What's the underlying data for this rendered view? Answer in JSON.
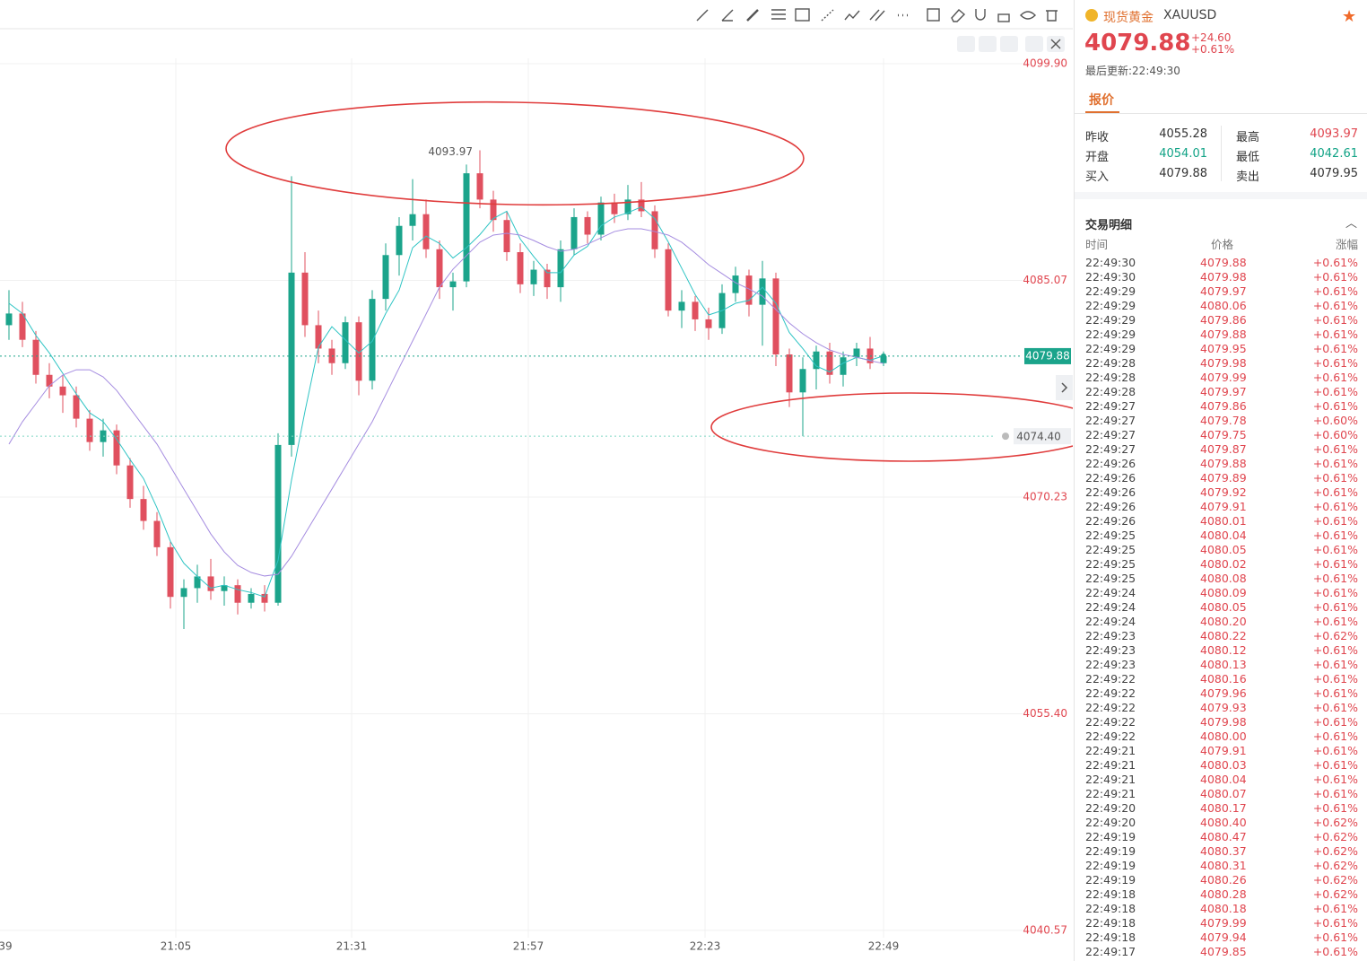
{
  "chart_data": {
    "type": "candlestick",
    "open": [
      4082.0,
      4082.8,
      4081.0,
      4078.6,
      4077.8,
      4077.2,
      4075.6,
      4074.0,
      4074.8,
      4072.4,
      4070.1,
      4068.6,
      4066.8,
      4063.4,
      4064.0,
      4064.8,
      4063.8,
      4064.2,
      4063.0,
      4063.6,
      4063.0,
      4073.8,
      4085.6,
      4082.0,
      4080.4,
      4079.4,
      4082.2,
      4078.2,
      4083.8,
      4086.8,
      4088.8,
      4089.6,
      4087.2,
      4084.6,
      4085.0,
      4092.4,
      4090.6,
      4089.2,
      4087.0,
      4084.8,
      4085.8,
      4084.6,
      4087.2,
      4089.4,
      4088.2,
      4090.4,
      4089.6,
      4090.6,
      4089.8,
      4087.2,
      4083.0,
      4083.6,
      4082.4,
      4081.8,
      4084.2,
      4085.4,
      4083.4,
      4085.2,
      4080.0,
      4077.4,
      4079.0,
      4080.2,
      4078.6,
      4079.8,
      4080.4,
      4079.4
    ],
    "high": [
      4084.4,
      4083.6,
      4081.6,
      4079.4,
      4078.6,
      4077.8,
      4076.2,
      4075.6,
      4075.2,
      4072.9,
      4071.0,
      4069.2,
      4067.2,
      4064.6,
      4065.6,
      4066.0,
      4064.8,
      4064.6,
      4064.0,
      4064.2,
      4074.6,
      4092.2,
      4087.0,
      4083.0,
      4081.0,
      4082.6,
      4082.6,
      4084.4,
      4087.6,
      4089.4,
      4092.0,
      4090.6,
      4087.8,
      4085.6,
      4093.0,
      4093.97,
      4091.2,
      4089.8,
      4087.6,
      4086.4,
      4086.2,
      4087.8,
      4090.0,
      4089.8,
      4090.8,
      4091.0,
      4091.6,
      4091.8,
      4090.2,
      4087.6,
      4084.4,
      4084.0,
      4083.2,
      4084.8,
      4086.0,
      4085.8,
      4086.4,
      4085.6,
      4080.4,
      4079.8,
      4080.6,
      4080.8,
      4080.2,
      4080.8,
      4081.2,
      4080.2
    ],
    "low": [
      4081.0,
      4080.5,
      4078.0,
      4077.0,
      4076.0,
      4075.0,
      4073.4,
      4073.0,
      4071.8,
      4069.5,
      4068.0,
      4066.2,
      4062.6,
      4061.2,
      4063.0,
      4063.2,
      4062.8,
      4062.2,
      4062.6,
      4062.4,
      4062.8,
      4073.0,
      4081.2,
      4079.4,
      4078.6,
      4079.0,
      4077.2,
      4077.6,
      4083.0,
      4085.4,
      4087.8,
      4086.6,
      4083.8,
      4083.0,
      4084.6,
      4090.0,
      4088.4,
      4086.4,
      4084.2,
      4084.0,
      4083.8,
      4083.6,
      4086.8,
      4087.6,
      4087.8,
      4089.0,
      4089.2,
      4089.4,
      4086.6,
      4082.6,
      4081.8,
      4081.6,
      4081.0,
      4081.4,
      4083.6,
      4082.6,
      4080.6,
      4079.2,
      4076.4,
      4074.4,
      4077.6,
      4078.0,
      4077.8,
      4079.2,
      4079.0,
      4079.2
    ],
    "close": [
      4082.8,
      4081.0,
      4078.6,
      4077.8,
      4077.2,
      4075.6,
      4074.0,
      4074.8,
      4072.4,
      4070.1,
      4068.6,
      4066.8,
      4063.4,
      4064.0,
      4064.8,
      4063.8,
      4064.2,
      4063.0,
      4063.6,
      4063.0,
      4073.8,
      4085.6,
      4082.0,
      4080.4,
      4079.4,
      4082.2,
      4078.2,
      4083.8,
      4086.8,
      4088.8,
      4089.6,
      4087.2,
      4084.6,
      4085.0,
      4092.4,
      4090.6,
      4089.2,
      4087.0,
      4084.8,
      4085.8,
      4084.6,
      4087.2,
      4089.4,
      4088.2,
      4090.4,
      4089.6,
      4090.6,
      4089.8,
      4087.2,
      4083.0,
      4083.6,
      4082.4,
      4081.8,
      4084.2,
      4085.4,
      4083.4,
      4085.2,
      4080.0,
      4077.4,
      4079.0,
      4080.2,
      4078.6,
      4079.8,
      4080.4,
      4079.4,
      4079.88
    ],
    "up_color": "#1ba48b",
    "down_color": "#e0505f",
    "moving_averages": [
      {
        "color": "#2ec4c4",
        "values": [
          4083.5,
          4082.8,
          4081.3,
          4080.1,
          4078.7,
          4077.3,
          4076.0,
          4075.4,
          4074.2,
          4072.8,
          4071.5,
          4069.5,
          4067.2,
          4065.7,
          4064.8,
          4064.0,
          4064.2,
          4063.9,
          4063.7,
          4063.4,
          4065.9,
          4071.4,
          4076.1,
          4080.5,
          4081.9,
          4081.0,
          4080.1,
          4080.9,
          4082.8,
          4084.4,
          4087.3,
          4088.1,
          4087.6,
          4086.6,
          4087.3,
          4088.2,
          4089.3,
          4089.8,
          4087.9,
          4086.7,
          4085.6,
          4085.6,
          4086.8,
          4087.4,
          4088.8,
          4089.4,
          4089.7,
          4090.1,
          4089.3,
          4087.7,
          4085.9,
          4084.1,
          4082.7,
          4083.0,
          4083.5,
          4083.7,
          4084.6,
          4083.5,
          4081.5,
          4080.4,
          4079.2,
          4078.8,
          4079.4,
          4079.8,
          4079.6,
          4079.9
        ]
      },
      {
        "color": "#a58ce0",
        "values": [
          4073.86,
          4075.39,
          4076.62,
          4077.85,
          4078.59,
          4078.95,
          4078.95,
          4078.46,
          4077.54,
          4076.31,
          4075.08,
          4073.86,
          4072.32,
          4070.78,
          4069.25,
          4067.71,
          4066.48,
          4065.56,
          4065.07,
          4064.83,
          4064.95,
          4066.18,
          4067.71,
          4069.25,
          4070.78,
          4072.32,
          4073.86,
          4075.39,
          4077.23,
          4079.08,
          4080.92,
          4082.76,
          4084.61,
          4085.83,
          4086.76,
          4087.68,
          4088.17,
          4088.29,
          4088.17,
          4087.8,
          4087.37,
          4087.06,
          4087.19,
          4087.55,
          4087.98,
          4088.41,
          4088.6,
          4088.6,
          4088.41,
          4088.17,
          4087.68,
          4086.94,
          4086.14,
          4085.53,
          4084.91,
          4084.48,
          4083.99,
          4083.07,
          4082.15,
          4081.41,
          4080.8,
          4080.31,
          4080.0,
          4079.81,
          4079.57,
          4079.38
        ]
      }
    ],
    "ylim": [
      4040.07,
      4100.27
    ],
    "yticks": [
      {
        "value": 4099.9,
        "label": "4099.90"
      },
      4085.07,
      4070.23,
      {
        "value": 4055.4,
        "label": "4055.40"
      },
      4040.57
    ],
    "grid": true,
    "xlabels": [
      "39",
      "21:05",
      "21:31",
      "21:57",
      "22:23",
      "22:49"
    ],
    "alert": {
      "value": 4074.4,
      "label": "4074.40"
    }
  },
  "quote": {
    "name": "现货黄金",
    "symbol": "XAUUSD",
    "price": "4079.88",
    "change": "+24.60",
    "change_pct": "+0.61%",
    "updated": "最后更新:22:49:30",
    "tab": "报价",
    "fields": [
      [
        "昨收",
        "4055.28",
        "最高",
        "4093.97"
      ],
      [
        "开盘",
        "4054.01",
        "最低",
        "4042.61"
      ],
      [
        "买入",
        "4079.88",
        "卖出",
        "4079.95"
      ]
    ],
    "trades_title": "交易明细",
    "trade_headers": [
      "时间",
      "价格",
      "涨幅"
    ],
    "trades": [
      [
        "22:49:30",
        "4079.88",
        "+0.61%"
      ],
      [
        "22:49:30",
        "4079.98",
        "+0.61%"
      ],
      [
        "22:49:29",
        "4079.97",
        "+0.61%"
      ],
      [
        "22:49:29",
        "4080.06",
        "+0.61%"
      ],
      [
        "22:49:29",
        "4079.86",
        "+0.61%"
      ],
      [
        "22:49:29",
        "4079.88",
        "+0.61%"
      ],
      [
        "22:49:29",
        "4079.95",
        "+0.61%"
      ],
      [
        "22:49:28",
        "4079.98",
        "+0.61%"
      ],
      [
        "22:49:28",
        "4079.99",
        "+0.61%"
      ],
      [
        "22:49:28",
        "4079.97",
        "+0.61%"
      ],
      [
        "22:49:27",
        "4079.86",
        "+0.61%"
      ],
      [
        "22:49:27",
        "4079.78",
        "+0.60%"
      ],
      [
        "22:49:27",
        "4079.75",
        "+0.60%"
      ],
      [
        "22:49:27",
        "4079.87",
        "+0.61%"
      ],
      [
        "22:49:26",
        "4079.88",
        "+0.61%"
      ],
      [
        "22:49:26",
        "4079.89",
        "+0.61%"
      ],
      [
        "22:49:26",
        "4079.92",
        "+0.61%"
      ],
      [
        "22:49:26",
        "4079.91",
        "+0.61%"
      ],
      [
        "22:49:26",
        "4080.01",
        "+0.61%"
      ],
      [
        "22:49:25",
        "4080.04",
        "+0.61%"
      ],
      [
        "22:49:25",
        "4080.05",
        "+0.61%"
      ],
      [
        "22:49:25",
        "4080.02",
        "+0.61%"
      ],
      [
        "22:49:25",
        "4080.08",
        "+0.61%"
      ],
      [
        "22:49:24",
        "4080.09",
        "+0.61%"
      ],
      [
        "22:49:24",
        "4080.05",
        "+0.61%"
      ],
      [
        "22:49:24",
        "4080.20",
        "+0.61%"
      ],
      [
        "22:49:23",
        "4080.22",
        "+0.62%"
      ],
      [
        "22:49:23",
        "4080.12",
        "+0.61%"
      ],
      [
        "22:49:23",
        "4080.13",
        "+0.61%"
      ],
      [
        "22:49:22",
        "4080.16",
        "+0.61%"
      ],
      [
        "22:49:22",
        "4079.96",
        "+0.61%"
      ],
      [
        "22:49:22",
        "4079.93",
        "+0.61%"
      ],
      [
        "22:49:22",
        "4079.98",
        "+0.61%"
      ],
      [
        "22:49:22",
        "4080.00",
        "+0.61%"
      ],
      [
        "22:49:21",
        "4079.91",
        "+0.61%"
      ],
      [
        "22:49:21",
        "4080.03",
        "+0.61%"
      ],
      [
        "22:49:21",
        "4080.04",
        "+0.61%"
      ],
      [
        "22:49:21",
        "4080.07",
        "+0.61%"
      ],
      [
        "22:49:20",
        "4080.17",
        "+0.61%"
      ],
      [
        "22:49:20",
        "4080.40",
        "+0.62%"
      ],
      [
        "22:49:19",
        "4080.47",
        "+0.62%"
      ],
      [
        "22:49:19",
        "4080.37",
        "+0.62%"
      ],
      [
        "22:49:19",
        "4080.31",
        "+0.62%"
      ],
      [
        "22:49:19",
        "4080.26",
        "+0.62%"
      ],
      [
        "22:49:18",
        "4080.28",
        "+0.62%"
      ],
      [
        "22:49:18",
        "4080.18",
        "+0.61%"
      ],
      [
        "22:49:18",
        "4079.99",
        "+0.61%"
      ],
      [
        "22:49:18",
        "4079.94",
        "+0.61%"
      ],
      [
        "22:49:17",
        "4079.85",
        "+0.61%"
      ]
    ]
  }
}
